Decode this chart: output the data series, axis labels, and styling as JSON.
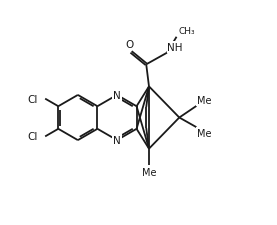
{
  "bg_color": "#ffffff",
  "line_color": "#1a1a1a",
  "line_width": 1.3,
  "font_size": 7.5,
  "figsize": [
    2.77,
    2.26
  ],
  "dpi": 100,
  "xlim": [
    0,
    10
  ],
  "ylim": [
    0,
    8.2
  ]
}
